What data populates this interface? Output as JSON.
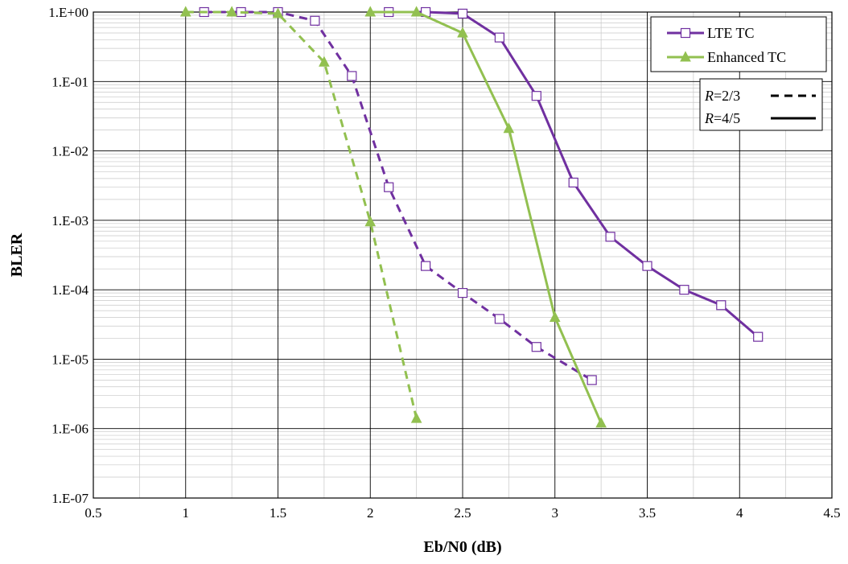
{
  "chart_data": {
    "type": "line",
    "xlabel": "Eb/N0 (dB)",
    "ylabel": "BLER",
    "xlim": [
      0.5,
      4.5
    ],
    "ylim": [
      1e-07,
      1
    ],
    "y_scale": "log",
    "x_ticks": [
      "0.5",
      "1",
      "1.5",
      "2",
      "2.5",
      "3",
      "3.5",
      "4",
      "4.5"
    ],
    "x_tick_values": [
      0.5,
      1,
      1.5,
      2,
      2.5,
      3,
      3.5,
      4,
      4.5
    ],
    "y_ticks": [
      "1.E+00",
      "1.E-01",
      "1.E-02",
      "1.E-03",
      "1.E-04",
      "1.E-05",
      "1.E-06",
      "1.E-07"
    ],
    "y_tick_values": [
      1,
      0.1,
      0.01,
      0.001,
      0.0001,
      1e-05,
      1e-06,
      1e-07
    ],
    "x_minor_step": 0.25,
    "grid": true,
    "legend_position": "top-right",
    "legend": {
      "series_entries": [
        {
          "name": "LTE TC",
          "color": "#7030A0",
          "marker": "square"
        },
        {
          "name": "Enhanced TC",
          "color": "#92C050",
          "marker": "triangle"
        }
      ],
      "rate_entries": [
        {
          "prefix": "R",
          "suffix": "=2/3",
          "style": "dashed"
        },
        {
          "prefix": "R",
          "suffix": "=4/5",
          "style": "solid"
        }
      ]
    },
    "series": [
      {
        "name": "LTE TC",
        "rate": "R=2/3",
        "color": "#7030A0",
        "marker": "square",
        "style": "dashed",
        "x": [
          1.1,
          1.3,
          1.5,
          1.7,
          1.9,
          2.1,
          2.3,
          2.5,
          2.7,
          2.9,
          3.2
        ],
        "y": [
          1.0,
          1.0,
          1.0,
          0.75,
          0.12,
          0.003,
          0.00022,
          9e-05,
          3.8e-05,
          1.5e-05,
          5e-06
        ]
      },
      {
        "name": "Enhanced TC",
        "rate": "R=2/3",
        "color": "#92C050",
        "marker": "triangle",
        "style": "dashed",
        "x": [
          1.0,
          1.25,
          1.5,
          1.75,
          2.0,
          2.25
        ],
        "y": [
          1.0,
          1.0,
          0.95,
          0.19,
          0.00095,
          1.4e-06
        ]
      },
      {
        "name": "LTE TC",
        "rate": "R=4/5",
        "color": "#7030A0",
        "marker": "square",
        "style": "solid",
        "x": [
          2.1,
          2.3,
          2.5,
          2.7,
          2.9,
          3.1,
          3.3,
          3.5,
          3.7,
          3.9,
          4.1
        ],
        "y": [
          1.0,
          1.0,
          0.95,
          0.43,
          0.062,
          0.0035,
          0.00058,
          0.00022,
          0.0001,
          6e-05,
          2.1e-05
        ]
      },
      {
        "name": "Enhanced TC",
        "rate": "R=4/5",
        "color": "#92C050",
        "marker": "triangle",
        "style": "solid",
        "x": [
          2.0,
          2.25,
          2.5,
          2.75,
          3.0,
          3.25
        ],
        "y": [
          1.0,
          1.0,
          0.5,
          0.021,
          4e-05,
          1.2e-06
        ]
      }
    ]
  }
}
